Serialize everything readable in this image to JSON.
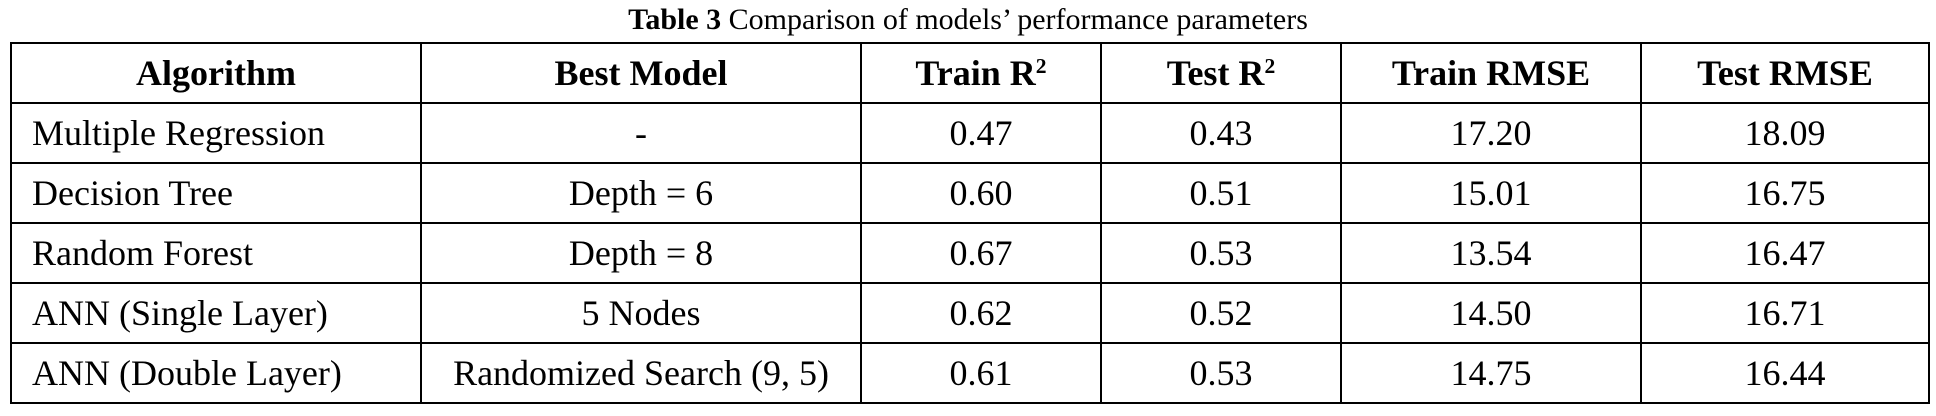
{
  "caption": {
    "label": "Table 3",
    "text": "Comparison of models’ performance parameters"
  },
  "table": {
    "headers": {
      "algorithm": "Algorithm",
      "best_model": "Best Model",
      "train_r2": "Train R",
      "train_r2_sup": "2",
      "test_r2": "Test R",
      "test_r2_sup": "2",
      "train_rmse": "Train RMSE",
      "test_rmse": "Test RMSE"
    },
    "rows": [
      {
        "algorithm": "Multiple Regression",
        "best_model": "-",
        "train_r2": "0.47",
        "test_r2": "0.43",
        "train_rmse": "17.20",
        "test_rmse": "18.09"
      },
      {
        "algorithm": "Decision Tree",
        "best_model": "Depth = 6",
        "train_r2": "0.60",
        "test_r2": "0.51",
        "train_rmse": "15.01",
        "test_rmse": "16.75"
      },
      {
        "algorithm": "Random Forest",
        "best_model": "Depth = 8",
        "train_r2": "0.67",
        "test_r2": "0.53",
        "train_rmse": "13.54",
        "test_rmse": "16.47"
      },
      {
        "algorithm": "ANN (Single Layer)",
        "best_model": "5 Nodes",
        "train_r2": "0.62",
        "test_r2": "0.52",
        "train_rmse": "14.50",
        "test_rmse": "16.71"
      },
      {
        "algorithm": "ANN (Double Layer)",
        "best_model": "Randomized Search (9, 5)",
        "train_r2": "0.61",
        "test_r2": "0.53",
        "train_rmse": "14.75",
        "test_rmse": "16.44"
      }
    ]
  }
}
